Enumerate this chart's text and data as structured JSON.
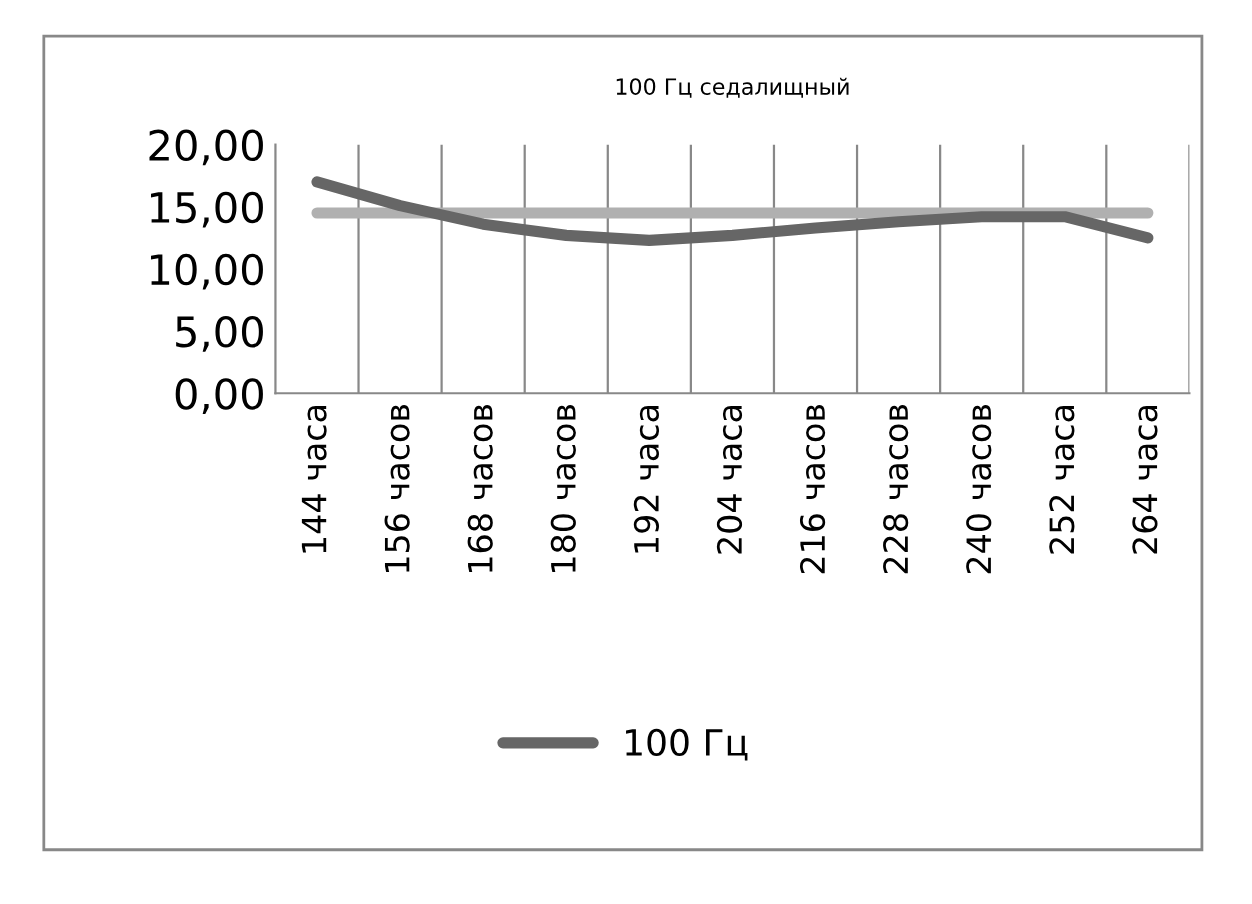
{
  "chart_data": {
    "type": "line",
    "title": "100 Гц седалищный",
    "categories": [
      "144 часа",
      "156 часов",
      "168 часов",
      "180 часов",
      "192 часа",
      "204 часа",
      "216 часов",
      "228 часов",
      "240 часов",
      "252 часа",
      "264 часа"
    ],
    "series": [
      {
        "name": "100 Гц",
        "color": "#666666",
        "values": [
          17.0,
          15.1,
          13.6,
          12.7,
          12.3,
          12.7,
          13.3,
          13.8,
          14.2,
          14.2,
          12.5
        ]
      },
      {
        "color": "#b0b0b0",
        "values": [
          14.5,
          14.5,
          14.5,
          14.5,
          14.5,
          14.5,
          14.5,
          14.5,
          14.5,
          14.5,
          14.5
        ]
      }
    ],
    "ylim": [
      0,
      20
    ],
    "yticks": [
      {
        "value": 0,
        "label": "0,00"
      },
      {
        "value": 5,
        "label": "5,00"
      },
      {
        "value": 10,
        "label": "10,00"
      },
      {
        "value": 15,
        "label": "15,00"
      },
      {
        "value": 20,
        "label": "20,00"
      }
    ],
    "grid": "x",
    "legend": "bottom",
    "marker": "none",
    "line_style": "solid"
  }
}
